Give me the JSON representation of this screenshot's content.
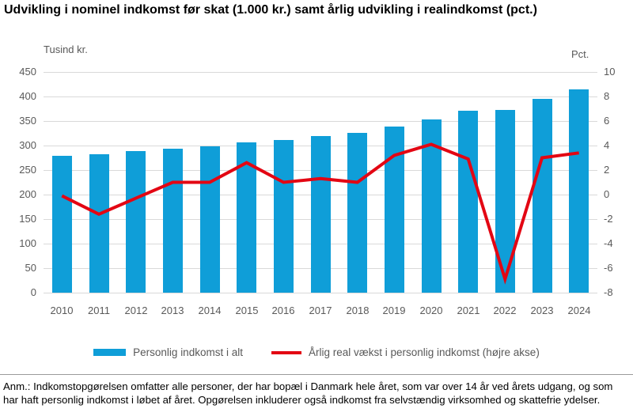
{
  "title": "Udvikling i nominel indkomst før skat (1.000 kr.) samt årlig udvikling i realindkomst (pct.)",
  "left_axis": {
    "label": "Tusind kr.",
    "ticks": [
      "450",
      "400",
      "350",
      "300",
      "250",
      "200",
      "150",
      "100",
      "50",
      "0"
    ]
  },
  "right_axis": {
    "label": "Pct.",
    "ticks": [
      "10",
      "8",
      "6",
      "4",
      "2",
      "0",
      "-2",
      "-4",
      "-6",
      "-8"
    ]
  },
  "chart_data": {
    "type": "bar+line",
    "categories": [
      "2010",
      "2011",
      "2012",
      "2013",
      "2014",
      "2015",
      "2016",
      "2017",
      "2018",
      "2019",
      "2020",
      "2021",
      "2022",
      "2023",
      "2024"
    ],
    "series": [
      {
        "name": "Personlig indkomst i alt",
        "type": "bar",
        "axis": "left",
        "color": "#0F9ED8",
        "values": [
          279,
          282,
          288,
          293,
          298,
          307,
          311,
          319,
          326,
          338,
          354,
          371,
          372,
          396,
          415
        ]
      },
      {
        "name": "Årlig real vækst i personlig indkomst (højre akse)",
        "type": "line",
        "axis": "right",
        "color": "#E30613",
        "values": [
          -0.1,
          -1.6,
          -0.3,
          1.0,
          1.0,
          2.6,
          1.0,
          1.3,
          1.0,
          3.2,
          4.1,
          2.9,
          -6.9,
          3.0,
          3.4
        ]
      }
    ],
    "left_ylim": [
      0,
      450
    ],
    "right_ylim": [
      -8,
      10
    ],
    "grid": true,
    "legend_position": "bottom"
  },
  "colors": {
    "bar": "#0F9ED8",
    "line": "#E30613",
    "gridline": "#D9D9D9",
    "axis_text": "#595959"
  },
  "footnote": "Anm.: Indkomstopgørelsen omfatter alle personer, der har bopæl i Danmark hele året, som var over 14 år ved årets udgang, og som har haft personlig indkomst i løbet af året. Opgørelsen inkluderer også indkomst fra selvstændig virksomhed og skattefrie ydelser."
}
